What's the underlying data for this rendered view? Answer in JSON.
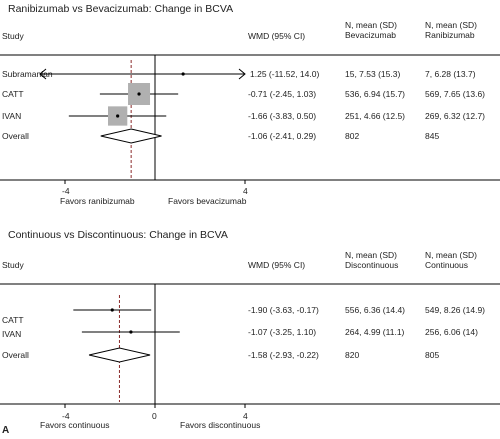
{
  "figure_label": "A",
  "colors": {
    "line": "#000000",
    "box": "#b0b0b0",
    "null_line": "#8b2b2b",
    "point": "#000000"
  },
  "chart_data": [
    {
      "type": "forest",
      "title": "Ranibizumab vs Bevacizumab: Change in BCVA",
      "columns": {
        "study": "Study",
        "effect": "WMD (95% CI)",
        "group1_line1": "N, mean (SD)",
        "group1_line2": "Bevacizumab",
        "group2_line1": "N, mean (SD)",
        "group2_line2": "Ranibizumab"
      },
      "studies": [
        {
          "name": "Subramanian",
          "wmd": 1.25,
          "lo": -11.52,
          "hi": 14.0,
          "ci_text": "1.25 (-11.52, 14.0)",
          "g1": "15, 7.53 (15.3)",
          "g2": "7, 6.28 (13.7)",
          "weight": 0.2,
          "arrows": true
        },
        {
          "name": "CATT",
          "wmd": -0.71,
          "lo": -2.45,
          "hi": 1.03,
          "ci_text": "-0.71 (-2.45, 1.03)",
          "g1": "536, 6.94 (15.7)",
          "g2": "569, 7.65 (13.6)",
          "weight": 1.0,
          "arrows": false
        },
        {
          "name": "IVAN",
          "wmd": -1.66,
          "lo": -3.83,
          "hi": 0.5,
          "ci_text": "-1.66 (-3.83, 0.50)",
          "g1": "251, 4.66 (12.5)",
          "g2": "269, 6.32 (12.7)",
          "weight": 0.85,
          "arrows": false
        }
      ],
      "overall": {
        "name": "Overall",
        "wmd": -1.06,
        "lo": -2.41,
        "hi": 0.29,
        "ci_text": "-1.06 (-2.41, 0.29)",
        "g1": "802",
        "g2": "845"
      },
      "x_ticks": [
        {
          "value": -4,
          "label": "-4"
        },
        {
          "value": 4,
          "label": "4"
        }
      ],
      "favors_left": "Favors ranibizumab",
      "favors_right": "Favors bevacizumab",
      "xlim": [
        -5.5,
        5.5
      ],
      "null_value": 0
    },
    {
      "type": "forest",
      "title": "Continuous vs Discontinuous: Change in BCVA",
      "columns": {
        "study": "Study",
        "effect": "WMD (95% CI)",
        "group1_line1": "N, mean (SD)",
        "group1_line2": "Discontinuous",
        "group2_line1": "N, mean (SD)",
        "group2_line2": "Continuous"
      },
      "studies": [
        {
          "name": "CATT",
          "wmd": -1.9,
          "lo": -3.63,
          "hi": -0.17,
          "ci_text": "-1.90 (-3.63, -0.17)",
          "g1": "556, 6.36 (14.4)",
          "g2": "549, 8.26 (14.9)",
          "weight": 0.15,
          "arrows": false
        },
        {
          "name": "IVAN",
          "wmd": -1.07,
          "lo": -3.25,
          "hi": 1.1,
          "ci_text": "-1.07 (-3.25, 1.10)",
          "g1": "264, 4.99 (11.1)",
          "g2": "256, 6.06 (14)",
          "weight": 0.1,
          "arrows": false
        }
      ],
      "overall": {
        "name": "Overall",
        "wmd": -1.58,
        "lo": -2.93,
        "hi": -0.22,
        "ci_text": "-1.58 (-2.93, -0.22)",
        "g1": "820",
        "g2": "805"
      },
      "x_ticks": [
        {
          "value": -4,
          "label": "-4"
        },
        {
          "value": 0,
          "label": "0"
        },
        {
          "value": 4,
          "label": "4"
        }
      ],
      "favors_left": "Favors continuous",
      "favors_right": "Favors discontinuous",
      "xlim": [
        -5.5,
        5.5
      ],
      "null_value": 0
    }
  ]
}
